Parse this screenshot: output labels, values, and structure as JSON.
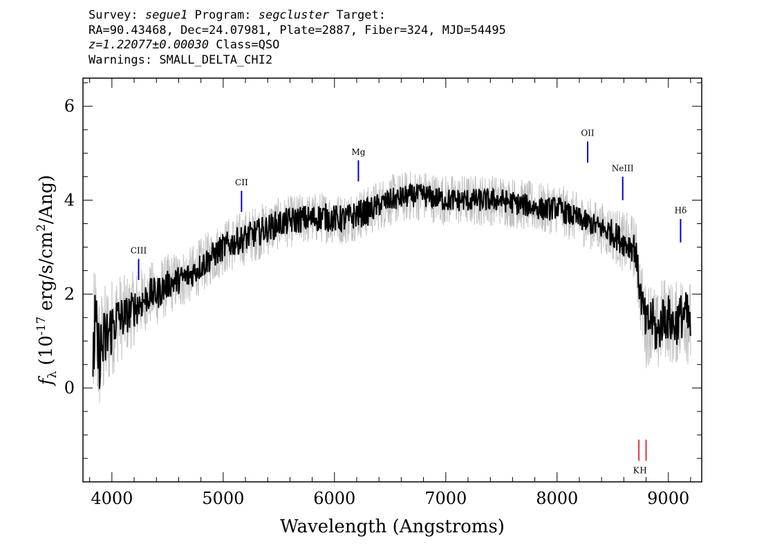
{
  "header": {
    "survey_label": "Survey:",
    "survey": "segue1",
    "program_label": "Program:",
    "program": "segcluster",
    "target_label": "Target:",
    "line2": "RA=90.43468, Dec=24.07981, Plate=2887, Fiber=324, MJD=54495",
    "redshift": "z=1.22077±0.00030",
    "class_text": "Class=QSO",
    "warnings": "Warnings: SMALL_DELTA_CHI2"
  },
  "chart_data": {
    "type": "line",
    "xlabel": "Wavelength (Angstroms)",
    "ylabel_prefix": "f",
    "ylabel_sub": "λ",
    "ylabel_main": " (10",
    "ylabel_exp": "-17",
    "ylabel_rest": " erg/s/cm",
    "ylabel_exp2": "2",
    "ylabel_end": "/Ang)",
    "xlim": [
      3740,
      9300
    ],
    "ylim": [
      -2.0,
      6.6
    ],
    "x_ticks": [
      "4000",
      "5000",
      "6000",
      "7000",
      "8000",
      "9000"
    ],
    "y_ticks": [
      "0",
      "2",
      "4",
      "6"
    ],
    "colors": {
      "data": "#c0c0c0",
      "model": "#000000",
      "emission": "#0000cc",
      "absorption": "#dd0000"
    },
    "series": [
      {
        "role": "flux-envelope",
        "x": [
          3830,
          3850,
          3880,
          3920,
          3960,
          4000,
          4050,
          4100,
          4150,
          4200,
          4250,
          4300,
          4350,
          4400,
          4450,
          4500,
          4600,
          4700,
          4800,
          4900,
          5000,
          5100,
          5200,
          5300,
          5400,
          5500,
          5600,
          5700,
          5800,
          5900,
          6000,
          6100,
          6200,
          6300,
          6400,
          6500,
          6600,
          6700,
          6800,
          6900,
          7000,
          7100,
          7200,
          7300,
          7400,
          7500,
          7600,
          7700,
          7800,
          7900,
          8000,
          8100,
          8200,
          8300,
          8400,
          8500,
          8600,
          8700,
          8750,
          8800,
          8850,
          8900,
          8950,
          9000,
          9050,
          9100,
          9150,
          9200
        ],
        "y": [
          0.6,
          1.3,
          0.7,
          0.9,
          1.1,
          1.3,
          1.5,
          1.5,
          1.6,
          1.7,
          1.8,
          1.9,
          2.0,
          2.0,
          2.1,
          2.2,
          2.3,
          2.4,
          2.6,
          2.8,
          3.0,
          3.1,
          3.2,
          3.3,
          3.4,
          3.5,
          3.55,
          3.6,
          3.6,
          3.65,
          3.6,
          3.6,
          3.7,
          3.75,
          3.9,
          4.0,
          4.05,
          4.1,
          4.1,
          4.05,
          4.0,
          4.0,
          4.0,
          4.0,
          4.0,
          4.0,
          3.95,
          3.9,
          3.85,
          3.8,
          3.85,
          3.7,
          3.6,
          3.5,
          3.4,
          3.3,
          3.1,
          3.0,
          2.0,
          1.3,
          1.5,
          1.1,
          1.5,
          1.5,
          1.3,
          1.5,
          1.6,
          1.3
        ],
        "noise": [
          1.6,
          1.5,
          1.4,
          1.3,
          1.2,
          1.1,
          1.0,
          0.9,
          0.85,
          0.8,
          0.75,
          0.7,
          0.7,
          0.7,
          0.7,
          0.65,
          0.65,
          0.6,
          0.6,
          0.6,
          0.6,
          0.6,
          0.6,
          0.6,
          0.6,
          0.55,
          0.55,
          0.55,
          0.55,
          0.55,
          0.55,
          0.55,
          0.55,
          0.55,
          0.55,
          0.55,
          0.55,
          0.55,
          0.55,
          0.55,
          0.55,
          0.55,
          0.55,
          0.55,
          0.55,
          0.55,
          0.55,
          0.55,
          0.55,
          0.55,
          0.55,
          0.55,
          0.55,
          0.55,
          0.55,
          0.6,
          0.65,
          0.7,
          0.8,
          0.9,
          0.9,
          0.9,
          0.9,
          0.9,
          0.9,
          0.9,
          0.95,
          1.0
        ]
      },
      {
        "role": "flux",
        "x": [
          3830,
          3850,
          3880,
          3920,
          3960,
          4000,
          4050,
          4100,
          4150,
          4200,
          4250,
          4300,
          4350,
          4400,
          4450,
          4500,
          4600,
          4700,
          4800,
          4900,
          5000,
          5100,
          5200,
          5300,
          5400,
          5500,
          5600,
          5700,
          5800,
          5900,
          6000,
          6100,
          6200,
          6300,
          6400,
          6500,
          6600,
          6700,
          6800,
          6900,
          7000,
          7100,
          7200,
          7300,
          7400,
          7500,
          7600,
          7700,
          7800,
          7900,
          8000,
          8100,
          8200,
          8300,
          8400,
          8500,
          8600,
          8700,
          8750,
          8800,
          8850,
          8900,
          8950,
          9000,
          9050,
          9100,
          9150,
          9200
        ],
        "y": [
          0.6,
          1.3,
          0.7,
          0.9,
          1.1,
          1.3,
          1.5,
          1.5,
          1.6,
          1.7,
          1.8,
          1.9,
          2.0,
          2.0,
          2.1,
          2.2,
          2.3,
          2.4,
          2.6,
          2.8,
          3.0,
          3.1,
          3.2,
          3.3,
          3.4,
          3.5,
          3.55,
          3.6,
          3.6,
          3.65,
          3.6,
          3.6,
          3.7,
          3.75,
          3.9,
          4.0,
          4.05,
          4.1,
          4.1,
          4.05,
          4.0,
          4.0,
          4.0,
          4.0,
          4.0,
          4.0,
          3.95,
          3.9,
          3.85,
          3.8,
          3.85,
          3.7,
          3.6,
          3.5,
          3.4,
          3.3,
          3.1,
          3.0,
          2.0,
          1.3,
          1.5,
          1.1,
          1.5,
          1.5,
          1.3,
          1.5,
          1.6,
          1.3
        ],
        "noise": [
          0.9,
          0.85,
          0.8,
          0.75,
          0.7,
          0.6,
          0.5,
          0.45,
          0.4,
          0.4,
          0.4,
          0.35,
          0.35,
          0.35,
          0.35,
          0.3,
          0.3,
          0.3,
          0.3,
          0.3,
          0.3,
          0.3,
          0.3,
          0.3,
          0.3,
          0.3,
          0.3,
          0.3,
          0.3,
          0.3,
          0.3,
          0.3,
          0.3,
          0.3,
          0.25,
          0.25,
          0.25,
          0.25,
          0.25,
          0.25,
          0.25,
          0.25,
          0.25,
          0.25,
          0.25,
          0.25,
          0.25,
          0.25,
          0.25,
          0.25,
          0.25,
          0.25,
          0.25,
          0.25,
          0.25,
          0.3,
          0.3,
          0.35,
          0.4,
          0.5,
          0.5,
          0.5,
          0.5,
          0.5,
          0.5,
          0.5,
          0.5,
          0.6
        ]
      }
    ],
    "emission_lines": [
      {
        "label": "CIII",
        "x": 4240,
        "y_low": 2.3,
        "y_high": 2.75
      },
      {
        "label": "CII",
        "x": 5165,
        "y_low": 3.75,
        "y_high": 4.2
      },
      {
        "label": "Mg",
        "x": 6215,
        "y_low": 4.4,
        "y_high": 4.85
      },
      {
        "label": "OII",
        "x": 8275,
        "y_low": 4.8,
        "y_high": 5.25
      },
      {
        "label": "NeIII",
        "x": 8590,
        "y_low": 4.0,
        "y_high": 4.5
      },
      {
        "label": "Hδ",
        "x": 9110,
        "y_low": 3.1,
        "y_high": 3.6
      }
    ],
    "absorption_lines": [
      {
        "label": "K",
        "x": 8735,
        "y_low": -1.55,
        "y_high": -1.1
      },
      {
        "label": "H",
        "x": 8800,
        "y_low": -1.55,
        "y_high": -1.1
      }
    ]
  }
}
